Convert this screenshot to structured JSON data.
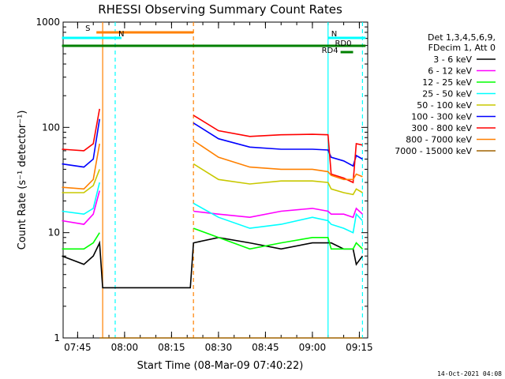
{
  "chart_data": {
    "type": "line",
    "title": "RHESSI Observing Summary Count Rates",
    "xlabel": "Start Time (08-Mar-09 07:40:22)",
    "ylabel": "Count Rate (s⁻¹ detector⁻¹)",
    "y_scale": "log",
    "ylim": [
      1,
      1000
    ],
    "xlim": [
      "07:40:22",
      "09:17:40"
    ],
    "x_ticks": [
      "07:45",
      "08:00",
      "08:15",
      "08:30",
      "08:45",
      "09:00",
      "09:15"
    ],
    "y_ticks": [
      "1",
      "10",
      "100",
      "1000"
    ],
    "grid": false,
    "legend_position": "right",
    "legend_header": [
      "Det 1,3,4,5,6,9,",
      "FDecim 1, Att 0"
    ],
    "timestamp": "14-Oct-2021 04:08",
    "x": [
      "07:40",
      "07:47",
      "07:50",
      "07:52",
      "07:53",
      "08:21",
      "08:22",
      "08:30",
      "08:40",
      "08:50",
      "09:00",
      "09:05",
      "09:06",
      "09:10",
      "09:13",
      "09:14",
      "09:16"
    ],
    "series": [
      {
        "name": "3 - 6 keV",
        "color": "#000000",
        "values": [
          6,
          5,
          6,
          8,
          3,
          3,
          8,
          9,
          8,
          7,
          8,
          8,
          8,
          7,
          7,
          5,
          6
        ]
      },
      {
        "name": "6 - 12 keV",
        "color": "#ff00ff",
        "values": [
          13,
          12,
          15,
          25,
          null,
          null,
          16,
          15,
          14,
          16,
          17,
          16,
          15,
          15,
          14,
          17,
          15
        ]
      },
      {
        "name": "12 - 25 keV",
        "color": "#00ff00",
        "values": [
          7,
          7,
          8,
          10,
          null,
          null,
          11,
          9,
          7,
          8,
          9,
          9,
          7,
          7,
          7,
          8,
          7
        ]
      },
      {
        "name": "25 - 50 keV",
        "color": "#00ffff",
        "values": [
          16,
          15,
          17,
          30,
          null,
          null,
          19,
          14,
          11,
          12,
          14,
          13,
          12,
          11,
          10,
          15,
          13
        ]
      },
      {
        "name": "50 - 100 keV",
        "color": "#c8c800",
        "values": [
          24,
          24,
          28,
          40,
          null,
          null,
          45,
          32,
          29,
          31,
          31,
          30,
          26,
          24,
          23,
          26,
          24
        ]
      },
      {
        "name": "100 - 300 keV",
        "color": "#0000ff",
        "values": [
          45,
          42,
          50,
          120,
          null,
          null,
          110,
          78,
          65,
          62,
          62,
          61,
          52,
          48,
          43,
          54,
          50
        ]
      },
      {
        "name": "300 - 800 keV",
        "color": "#ff0000",
        "values": [
          62,
          60,
          70,
          150,
          null,
          null,
          130,
          93,
          82,
          85,
          86,
          85,
          36,
          33,
          30,
          70,
          68
        ]
      },
      {
        "name": "800 - 7000 keV",
        "color": "#ff8000",
        "values": [
          27,
          26,
          32,
          70,
          null,
          null,
          75,
          52,
          42,
          40,
          40,
          38,
          35,
          32,
          32,
          36,
          34
        ]
      },
      {
        "name": "7000 - 15000 keV",
        "color": "#a06400",
        "values": [
          null,
          null,
          null,
          1,
          1,
          1,
          1,
          1,
          1,
          1,
          1,
          1,
          1,
          1,
          1,
          1,
          1
        ]
      }
    ],
    "flag_bars": [
      {
        "label": "S",
        "color": "#ff8000",
        "from": "07:51",
        "to": "08:22"
      },
      {
        "label": "N",
        "color": "#00ffff",
        "from": "07:40",
        "to": "07:59"
      },
      {
        "label": "N",
        "color": "#00ffff",
        "from": "09:05",
        "to": "09:17"
      },
      {
        "label": "",
        "color": "#008000",
        "from": "07:40",
        "to": "09:17"
      },
      {
        "label": "RD0",
        "color": "#008000",
        "from": "09:13",
        "to": "09:15"
      },
      {
        "label": "RD4",
        "color": "#008000",
        "from": "09:09",
        "to": "09:13"
      }
    ],
    "vertical_markers": [
      {
        "time": "07:53",
        "color": "#ff8000",
        "style": "solid"
      },
      {
        "time": "07:57",
        "color": "#00ffff",
        "style": "dashed"
      },
      {
        "time": "08:22",
        "color": "#ff8000",
        "style": "dashed"
      },
      {
        "time": "09:05",
        "color": "#00ffff",
        "style": "solid"
      },
      {
        "time": "09:16",
        "color": "#00ffff",
        "style": "dashed"
      }
    ]
  }
}
